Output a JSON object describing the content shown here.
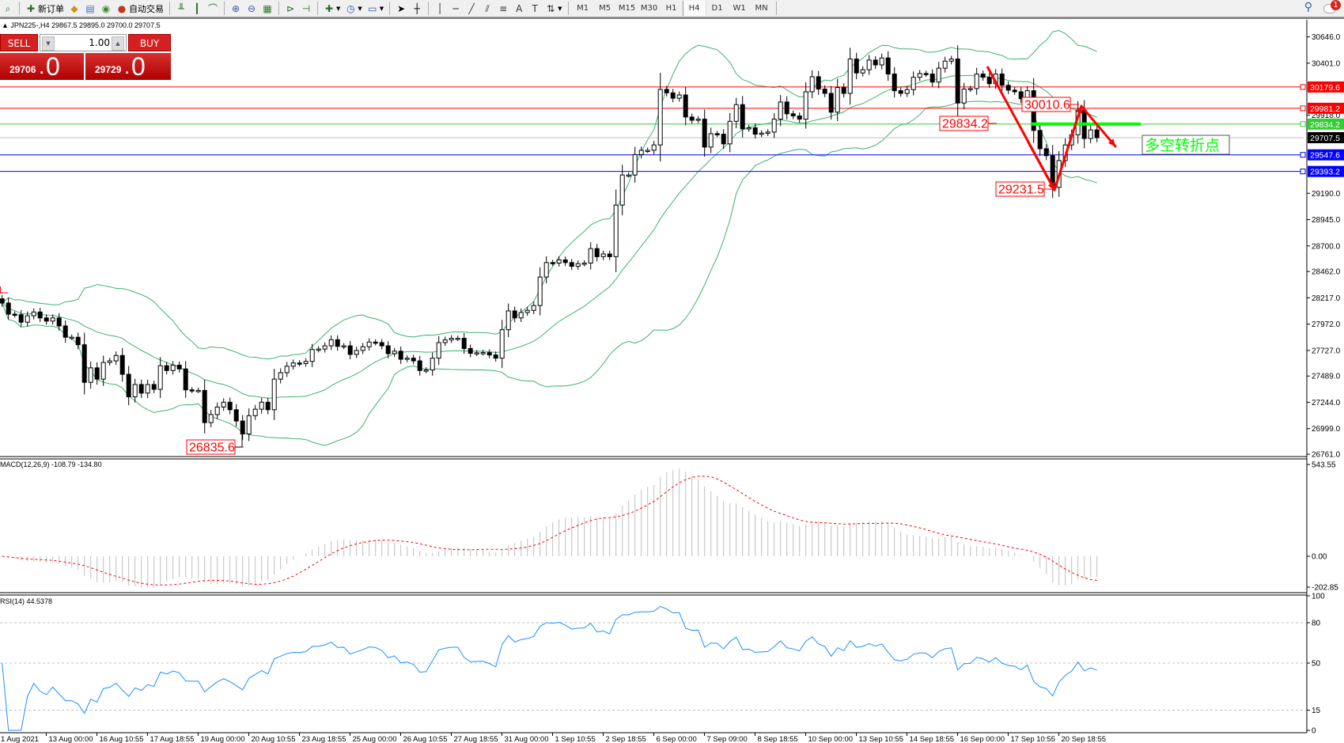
{
  "toolbar": {
    "new_order": "新订单",
    "auto_trading": "自动交易",
    "timeframes": [
      "M1",
      "M5",
      "M15",
      "M30",
      "H1",
      "H4",
      "D1",
      "W1",
      "MN"
    ],
    "active_timeframe": "H4",
    "notification_count": "1",
    "icons": [
      "search-icon",
      "new-order-icon",
      "chart-bar-icon",
      "candle-icon",
      "line-chart-icon",
      "zoom-in-icon",
      "zoom-out-icon",
      "tile-icon",
      "autoscroll-icon",
      "shift-icon",
      "indicator-icon",
      "clock-icon",
      "template-icon",
      "cursor-icon",
      "crosshair-icon",
      "vertical-line-icon",
      "horizontal-line-icon",
      "trendline-icon",
      "fibo-icon",
      "text-icon",
      "label-icon",
      "arrows-icon"
    ]
  },
  "chart": {
    "header": "JPN225-,H4  29867.5 29895.0 29700.0 29707.5"
  },
  "trade_panel": {
    "sell": "SELL",
    "buy": "BUY",
    "lot": "1.00",
    "sell_price_main": "29706",
    "sell_price_big": "0",
    "buy_price_main": "29729",
    "buy_price_big": "0"
  },
  "chart_data": {
    "type": "candlestick",
    "symbol": "JPN225-",
    "timeframe": "H4",
    "closes": [
      28168,
      28065,
      28060,
      27990,
      28050,
      28085,
      28030,
      28000,
      28030,
      27955,
      27850,
      27850,
      27780,
      27430,
      27565,
      27460,
      27615,
      27630,
      27680,
      27505,
      27295,
      27410,
      27330,
      27410,
      27365,
      27585,
      27540,
      27590,
      27555,
      27360,
      27355,
      27355,
      27055,
      27130,
      27200,
      27245,
      27175,
      27070,
      26950,
      27120,
      27180,
      27245,
      27175,
      27460,
      27520,
      27580,
      27610,
      27605,
      27625,
      27735,
      27740,
      27770,
      27827,
      27765,
      27770,
      27690,
      27727,
      27762,
      27805,
      27800,
      27770,
      27697,
      27720,
      27645,
      27655,
      27630,
      27540,
      27545,
      27655,
      27800,
      27825,
      27840,
      27840,
      27745,
      27700,
      27705,
      27707,
      27685,
      27655,
      27920,
      28095,
      28030,
      28080,
      28100,
      28145,
      28410,
      28545,
      28540,
      28570,
      28545,
      28510,
      28535,
      28540,
      28675,
      28600,
      28625,
      28600,
      29080,
      29360,
      29360,
      29550,
      29590,
      29590,
      29640,
      30157,
      30125,
      30075,
      30105,
      29900,
      29870,
      29880,
      29620,
      29745,
      29740,
      29650,
      29860,
      30015,
      29790,
      29800,
      29740,
      29750,
      29760,
      29880,
      30040,
      29930,
      29910,
      29880,
      30135,
      30275,
      30160,
      30120,
      29945,
      30175,
      30120,
      30440,
      30310,
      30340,
      30430,
      30385,
      30450,
      30300,
      30145,
      30120,
      30155,
      30270,
      30305,
      30300,
      30225,
      30355,
      30420,
      30440,
      30030,
      30160,
      30165,
      30300,
      30270,
      30210,
      30300,
      30195,
      30150,
      30135,
      30070,
      30145,
      29775,
      29605,
      29540,
      29245,
      29495,
      29640,
      29735,
      29965,
      29700,
      29780,
      29707.5
    ],
    "price_axis_ticks": [
      "30646.0",
      "30401.0",
      "29918.0",
      "29190.0",
      "28945.0",
      "28700.0",
      "28462.0",
      "28217.0",
      "27972.0",
      "27727.0",
      "27489.0",
      "27244.0",
      "26999.0",
      "26761.0"
    ],
    "horizontal_lines": [
      {
        "price": 30179.6,
        "label": "30179.6",
        "color": "#ff0000",
        "text_color": "#ffffff"
      },
      {
        "price": 29981.2,
        "label": "29981.2",
        "color": "#ff0000",
        "text_color": "#ffffff"
      },
      {
        "price": 29834.2,
        "label": "29834.2",
        "color": "#32cd32",
        "text_color": "#ffffff"
      },
      {
        "price": 29707.5,
        "label": "29707.5",
        "color": "#000000",
        "line_color": "#c0c0c0",
        "text_color": "#ffffff"
      },
      {
        "price": 29547.6,
        "label": "29547.6",
        "color": "#0000ff",
        "text_color": "#ffffff"
      },
      {
        "price": 29393.2,
        "label": "29393.2",
        "color": "#0000ff",
        "text_color": "#ffffff"
      }
    ],
    "price_labels": [
      {
        "text": "30010.6",
        "price": 30010.6
      },
      {
        "text": "29834.2",
        "price": 29834.2
      },
      {
        "text": "29231.5",
        "price": 29231.5
      },
      {
        "text": "26835.6",
        "price": 26835.6
      }
    ],
    "annotation_text": "多空转折点",
    "bollinger": {
      "period": 20,
      "deviation": 2,
      "color": "#3cb371"
    },
    "time_labels": [
      "1 Aug 2021",
      "13 Aug 00:00",
      "16 Aug 10:55",
      "17 Aug 18:55",
      "19 Aug 00:00",
      "20 Aug 10:55",
      "23 Aug 18:55",
      "25 Aug 00:00",
      "26 Aug 10:55",
      "27 Aug 18:55",
      "31 Aug 00:00",
      "1 Sep 10:55",
      "2 Sep 18:55",
      "6 Sep 00:00",
      "7 Sep 09:00",
      "8 Sep 18:55",
      "10 Sep 00:00",
      "13 Sep 10:55",
      "14 Sep 18:55",
      "16 Sep 00:00",
      "17 Sep 10:55",
      "20 Sep 18:55"
    ],
    "macd": {
      "label": "MACD(12,26,9) -108.79 -134.80",
      "main": -108.79,
      "signal": -134.8,
      "axis_ticks": [
        "543.55",
        "0.00",
        "-202.85"
      ],
      "range": [
        -202.85,
        543.55
      ]
    },
    "rsi": {
      "label": "RSI(14) 44.5378",
      "value": 44.5378,
      "levels": [
        80,
        50,
        15
      ],
      "axis_ticks": [
        "100",
        "80",
        "50",
        "15",
        "0"
      ],
      "color": "#1e90ff"
    }
  }
}
